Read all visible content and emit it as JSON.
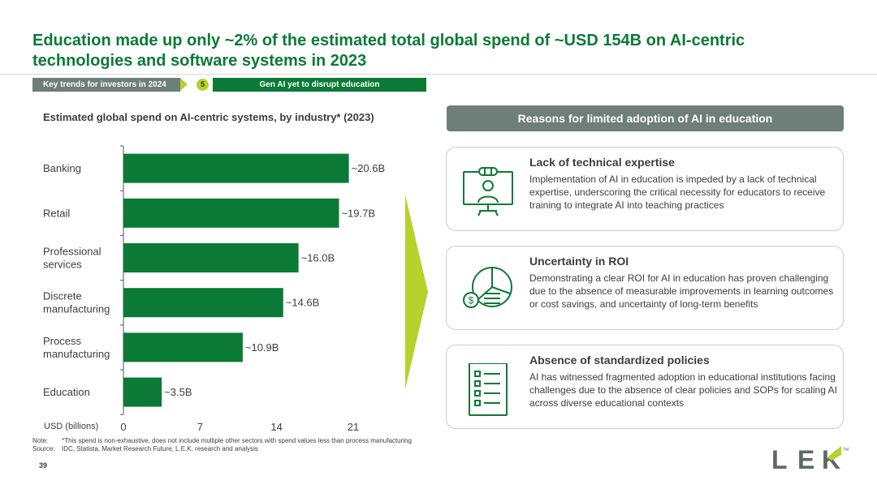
{
  "title": "Education made up only ~2% of the estimated total global spend of ~USD 154B on AI-centric technologies and software systems in 2023",
  "tags": {
    "section": "Key trends for investors in 2024",
    "number": "5",
    "topic": "Gen AI yet to disrupt education"
  },
  "colors": {
    "bar": "#0b7a36",
    "accent": "#b6d22b",
    "header_grey": "#6e7e78",
    "title_green": "#0b7a36"
  },
  "chart_data": {
    "type": "bar",
    "orientation": "horizontal",
    "title": "Estimated global spend on AI-centric systems, by industry* (2023)",
    "xlabel": "USD (billions)",
    "categories": [
      "Banking",
      "Retail",
      "Professional services",
      "Discrete manufacturing",
      "Process manufacturing",
      "Education"
    ],
    "category_lines": [
      [
        "Banking"
      ],
      [
        "Retail"
      ],
      [
        "Professional",
        "services"
      ],
      [
        "Discrete",
        "manufacturing"
      ],
      [
        "Process",
        "manufacturing"
      ],
      [
        "Education"
      ]
    ],
    "values": [
      20.6,
      19.7,
      16.0,
      14.6,
      10.9,
      3.5
    ],
    "value_labels": [
      "~20.6B",
      "~19.7B",
      "~16.0B",
      "~14.6B",
      "~10.9B",
      "~3.5B"
    ],
    "xlim": [
      0,
      21
    ],
    "xticks": [
      0,
      7,
      14,
      21
    ],
    "grid": false
  },
  "reasons": {
    "header": "Reasons for limited adoption of AI in education",
    "items": [
      {
        "icon": "online-teacher-icon",
        "title": "Lack of technical expertise",
        "body": "Implementation of AI in education is impeded by a lack of technical expertise, underscoring the critical necessity for educators to receive training to integrate AI into teaching practices"
      },
      {
        "icon": "pie-chart-dollar-icon",
        "title": "Uncertainty in ROI",
        "body": "Demonstrating a clear ROI for AI in education has proven challenging due to the absence of measurable improvements in learning outcomes or cost savings, and uncertainty of long-term benefits"
      },
      {
        "icon": "checklist-icon",
        "title": "Absence of standardized policies",
        "body": "AI has witnessed fragmented adoption in educational institutions facing challenges due to the absence of clear policies and SOPs for scaling AI across diverse educational contexts"
      }
    ]
  },
  "footnotes": {
    "note_key": "Note:",
    "note": "*This spend is non-exhaustive, does not include multiple other sectors with spend values less than process manufacturing",
    "source_key": "Source:",
    "source": "IDC, Statista, Market Research Future, L.E.K. research and analysis"
  },
  "page_number": "39",
  "logo": {
    "text": "LEK",
    "l": "L",
    "e": "E",
    "k": "K",
    "tm": "TM"
  }
}
